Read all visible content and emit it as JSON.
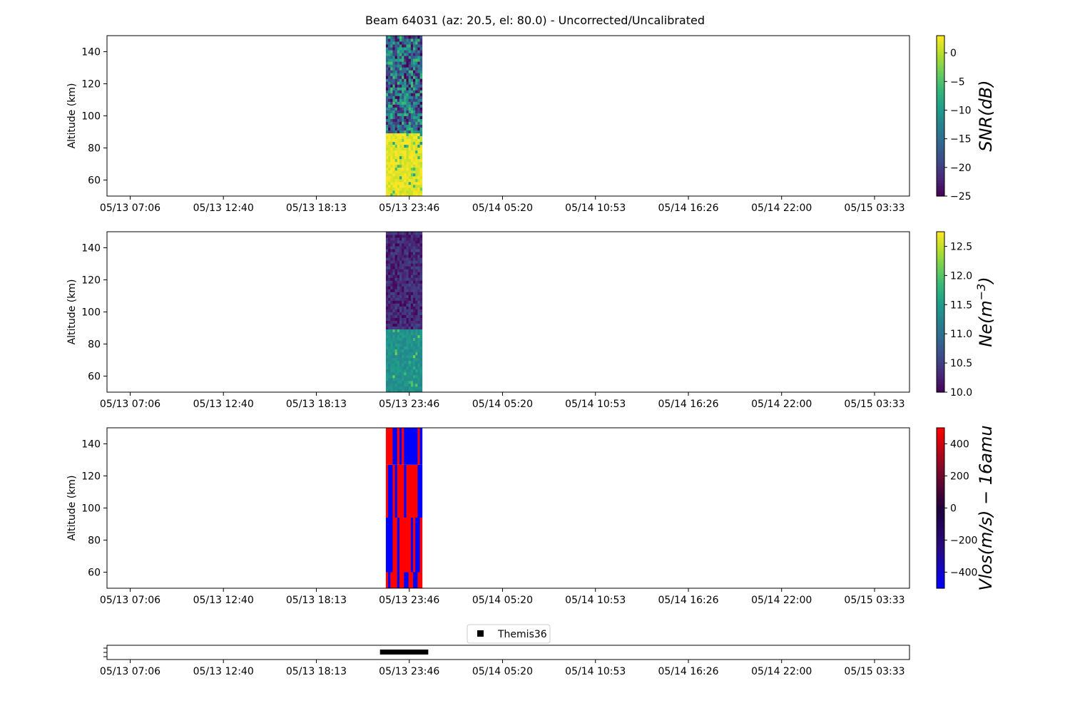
{
  "title": "Beam 64031 (az: 20.5, el: 80.0) - Uncorrected/Uncalibrated",
  "chart_data": [
    {
      "type": "heatmap",
      "name": "snr",
      "ylabel": "Altitude (km)",
      "ylim": [
        50,
        150
      ],
      "yticks": [
        60,
        80,
        100,
        120,
        140
      ],
      "xticks": [
        "05/13 07:06",
        "05/13 12:40",
        "05/13 18:13",
        "05/13 23:46",
        "05/14 05:20",
        "05/14 10:53",
        "05/14 16:26",
        "05/14 22:00",
        "05/15 03:33"
      ],
      "data_time_range": [
        "05/13 22:22",
        "05/14 00:32"
      ],
      "colormap": "viridis",
      "colorbar": {
        "label": "SNR(dB)",
        "range": [
          -25,
          3
        ],
        "ticks": [
          0,
          -5,
          -10,
          -15,
          -20,
          -25
        ],
        "tick_labels": [
          "0",
          "−5",
          "−10",
          "−15",
          "−20",
          "−25"
        ]
      },
      "pattern": {
        "low_altitude_band": [
          50,
          90
        ],
        "low_altitude_level": 2,
        "high_altitude_level_range": [
          -25,
          -5
        ]
      }
    },
    {
      "type": "heatmap",
      "name": "ne",
      "ylabel": "Altitude (km)",
      "ylim": [
        50,
        150
      ],
      "yticks": [
        60,
        80,
        100,
        120,
        140
      ],
      "xticks": [
        "05/13 07:06",
        "05/13 12:40",
        "05/13 18:13",
        "05/13 23:46",
        "05/14 05:20",
        "05/14 10:53",
        "05/14 16:26",
        "05/14 22:00",
        "05/15 03:33"
      ],
      "data_time_range": [
        "05/13 22:22",
        "05/14 00:32"
      ],
      "colormap": "viridis",
      "colorbar": {
        "label": "Ne(m^-3)",
        "label_base": "Ne(m",
        "label_sup": "−3",
        "label_tail": ")",
        "range": [
          10,
          12.75
        ],
        "ticks": [
          12.5,
          12.0,
          11.5,
          11.0,
          10.5,
          10.0
        ],
        "tick_labels": [
          "12.5",
          "12.0",
          "11.5",
          "11.0",
          "10.5",
          "10.0"
        ]
      },
      "pattern": {
        "low_altitude_band": [
          50,
          90
        ],
        "low_altitude_level": 11.4,
        "high_altitude_level_range": [
          10.0,
          10.6
        ]
      }
    },
    {
      "type": "heatmap",
      "name": "vlos",
      "ylabel": "Altitude (km)",
      "ylim": [
        50,
        150
      ],
      "yticks": [
        60,
        80,
        100,
        120,
        140
      ],
      "xticks": [
        "05/13 07:06",
        "05/13 12:40",
        "05/13 18:13",
        "05/13 23:46",
        "05/14 05:20",
        "05/14 10:53",
        "05/14 16:26",
        "05/14 22:00",
        "05/15 03:33"
      ],
      "data_time_range": [
        "05/13 22:22",
        "05/14 00:32"
      ],
      "colormap": "blue-red",
      "colorbar": {
        "label": "Vlos(m/s) − 16amu",
        "range": [
          -500,
          500
        ],
        "ticks": [
          400,
          200,
          0,
          -200,
          -400
        ],
        "tick_labels": [
          "400",
          "200",
          "0",
          "−200",
          "−400"
        ]
      },
      "pattern": {
        "altitude_blocks": [
          50,
          60,
          94,
          127,
          150
        ],
        "values": [
          -500,
          500
        ]
      }
    },
    {
      "type": "scatter",
      "name": "themis",
      "legend": [
        "Themis36"
      ],
      "legend_position": "top-center",
      "xticks": [
        "05/13 07:06",
        "05/13 12:40",
        "05/13 18:13",
        "05/13 23:46",
        "05/14 05:20",
        "05/14 10:53",
        "05/14 16:26",
        "05/14 22:00",
        "05/15 03:33"
      ],
      "data_time_range": [
        "05/13 22:10",
        "05/14 00:45"
      ]
    }
  ]
}
